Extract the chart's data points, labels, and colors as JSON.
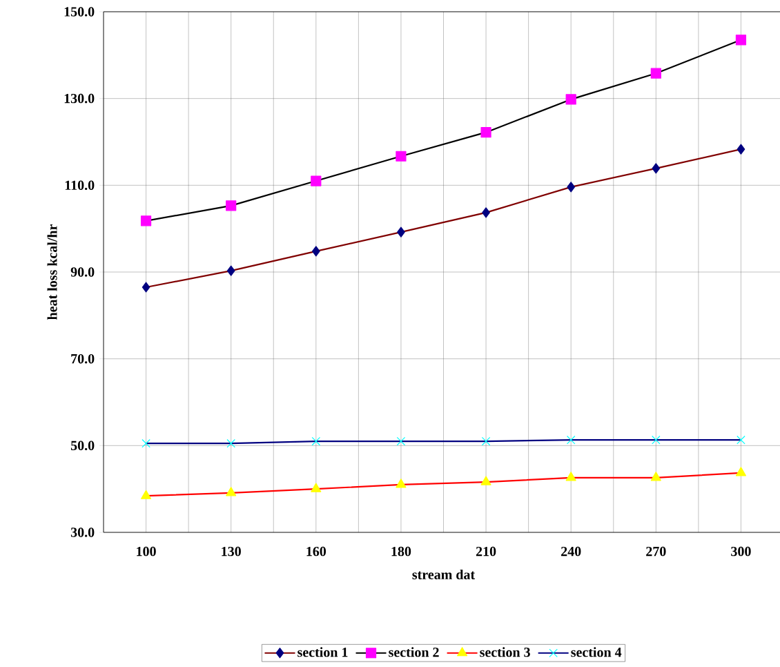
{
  "chart_data": {
    "type": "line",
    "xlabel": "stream dat",
    "ylabel": "heat loss kcal/hr",
    "categories": [
      "100",
      "130",
      "160",
      "180",
      "210",
      "240",
      "270",
      "300"
    ],
    "series": [
      {
        "name": "section 1",
        "color": "#800000",
        "marker": "diamond",
        "colors": [
          "#000080",
          "#000080",
          "#000080",
          "#000080",
          "#000080",
          "#000080",
          "#000080",
          "#000080"
        ],
        "values": [
          86.5,
          90.3,
          94.8,
          99.2,
          103.7,
          109.6,
          113.9,
          118.3
        ]
      },
      {
        "name": "section 2",
        "color": "#000000",
        "marker": "square",
        "colors": [
          "#ff00ff",
          "#ff00ff",
          "#ff00ff",
          "#ff00ff",
          "#ff00ff",
          "#ff00ff",
          "#ff00ff",
          "#ff00ff"
        ],
        "values": [
          101.8,
          105.3,
          111.0,
          116.7,
          122.2,
          129.8,
          135.8,
          143.5
        ]
      },
      {
        "name": "section 3",
        "color": "#ff0000",
        "marker": "triangle",
        "colors": [
          "#ffff00",
          "#ffff00",
          "#ffff00",
          "#ffff00",
          "#ffff00",
          "#ffff00",
          "#ffff00",
          "#ffff00"
        ],
        "values": [
          38.4,
          39.1,
          40.0,
          41.0,
          41.6,
          42.6,
          42.6,
          43.7
        ]
      },
      {
        "name": "section 4",
        "color": "#000080",
        "marker": "cross",
        "colors": [
          "#00ffff",
          "#00ffff",
          "#00ffff",
          "#00ffff",
          "#00ffff",
          "#00ffff",
          "#00ffff",
          "#00ffff"
        ],
        "values": [
          50.5,
          50.5,
          51.0,
          51.0,
          51.0,
          51.3,
          51.3,
          51.3
        ]
      }
    ],
    "ylim": [
      30,
      150
    ],
    "yticks": [
      {
        "value": 30,
        "label": "30.0"
      },
      {
        "value": 50,
        "label": "50.0"
      },
      {
        "value": 70,
        "label": "70.0"
      },
      {
        "value": 90,
        "label": "90.0"
      },
      {
        "value": 110,
        "label": "110.0"
      },
      {
        "value": 130,
        "label": "130.0"
      },
      {
        "value": 150,
        "label": "150.0"
      }
    ],
    "grid": true,
    "legend": "bottom",
    "line_style": "solid"
  }
}
